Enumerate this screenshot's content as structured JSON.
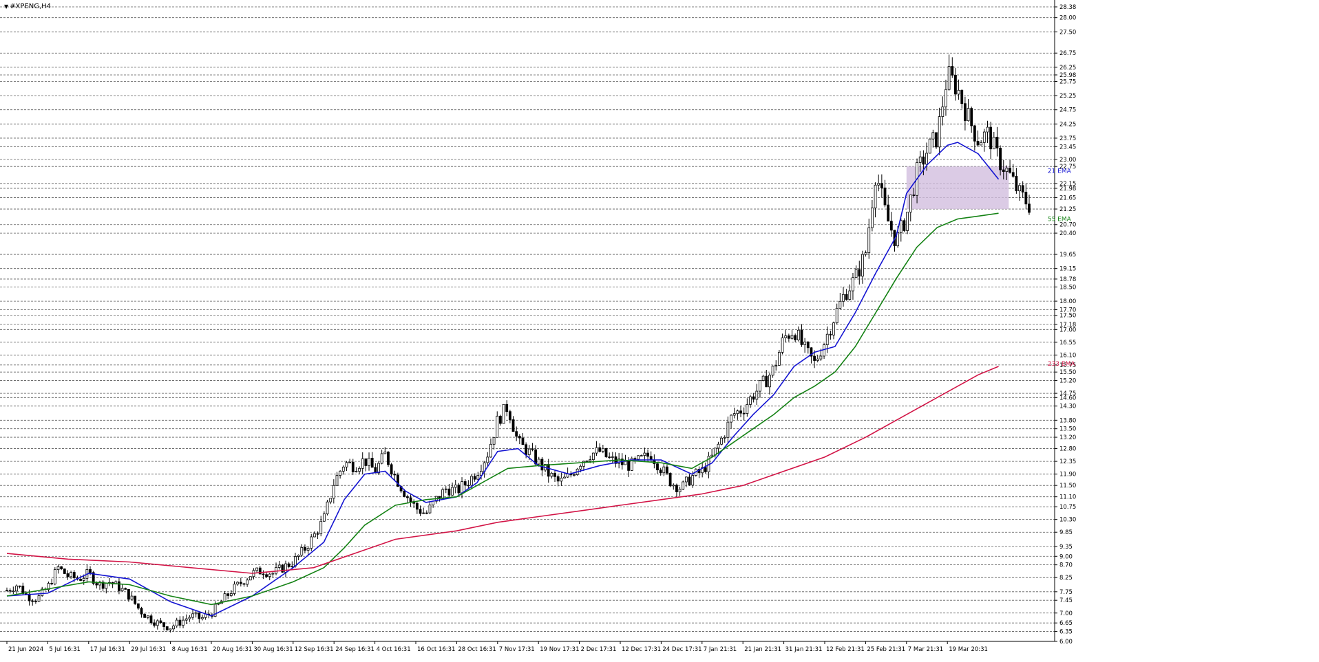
{
  "window": {
    "title": "#XPENG,H4"
  },
  "chart_data": {
    "type": "candlestick",
    "symbol": "#XPENG",
    "timeframe": "H4",
    "price_ticks": [
      "28.38",
      "28.00",
      "27.50",
      "26.75",
      "26.25",
      "25.98",
      "25.75",
      "25.25",
      "24.75",
      "24.25",
      "23.75",
      "23.45",
      "23.00",
      "22.75",
      "22.15",
      "21.98",
      "21.65",
      "21.25",
      "20.70",
      "20.40",
      "19.65",
      "19.15",
      "18.78",
      "18.50",
      "18.00",
      "17.70",
      "17.50",
      "17.18",
      "17.00",
      "16.55",
      "16.10",
      "15.75",
      "15.50",
      "15.20",
      "14.75",
      "14.60",
      "14.30",
      "13.80",
      "13.50",
      "13.20",
      "12.80",
      "12.35",
      "11.90",
      "11.50",
      "11.10",
      "10.75",
      "10.30",
      "9.85",
      "9.35",
      "9.00",
      "8.70",
      "8.25",
      "7.75",
      "7.45",
      "7.00",
      "6.65",
      "6.35",
      "6.00"
    ],
    "time_labels": [
      {
        "t": 0,
        "label": "21 Jun 2024"
      },
      {
        "t": 4,
        "label": "5 Jul 16:31"
      },
      {
        "t": 8,
        "label": "17 Jul 16:31"
      },
      {
        "t": 12,
        "label": "29 Jul 16:31"
      },
      {
        "t": 16,
        "label": "8 Aug 16:31"
      },
      {
        "t": 20,
        "label": "20 Aug 16:31"
      },
      {
        "t": 24,
        "label": "30 Aug 16:31"
      },
      {
        "t": 28,
        "label": "12 Sep 16:31"
      },
      {
        "t": 32,
        "label": "24 Sep 16:31"
      },
      {
        "t": 36,
        "label": "4 Oct 16:31"
      },
      {
        "t": 40,
        "label": "16 Oct 16:31"
      },
      {
        "t": 44,
        "label": "28 Oct 16:31"
      },
      {
        "t": 48,
        "label": "7 Nov 17:31"
      },
      {
        "t": 52,
        "label": "19 Nov 17:31"
      },
      {
        "t": 56,
        "label": "2 Dec 17:31"
      },
      {
        "t": 60,
        "label": "12 Dec 17:31"
      },
      {
        "t": 64,
        "label": "24 Dec 17:31"
      },
      {
        "t": 68,
        "label": "7 Jan 21:31"
      },
      {
        "t": 72,
        "label": "21 Jan 21:31"
      },
      {
        "t": 76,
        "label": "31 Jan 21:31"
      },
      {
        "t": 80,
        "label": "12 Feb 21:31"
      },
      {
        "t": 84,
        "label": "25 Feb 21:31"
      },
      {
        "t": 88,
        "label": "7 Mar 21:31"
      },
      {
        "t": 92,
        "label": "19 Mar 20:31"
      }
    ],
    "price_series": [
      [
        0,
        7.8
      ],
      [
        1,
        8.0
      ],
      [
        2,
        7.6
      ],
      [
        3,
        7.5
      ],
      [
        4,
        7.9
      ],
      [
        5,
        8.6
      ],
      [
        6,
        8.3
      ],
      [
        7,
        8.2
      ],
      [
        8,
        8.4
      ],
      [
        9,
        8.0
      ],
      [
        10,
        8.1
      ],
      [
        11,
        7.9
      ],
      [
        12,
        7.6
      ],
      [
        13,
        7.1
      ],
      [
        14,
        6.8
      ],
      [
        15,
        6.6
      ],
      [
        16,
        6.5
      ],
      [
        17,
        6.7
      ],
      [
        18,
        6.9
      ],
      [
        19,
        6.8
      ],
      [
        20,
        7.0
      ],
      [
        21,
        7.4
      ],
      [
        22,
        7.8
      ],
      [
        23,
        8.1
      ],
      [
        24,
        8.4
      ],
      [
        25,
        8.5
      ],
      [
        26,
        8.4
      ],
      [
        27,
        8.6
      ],
      [
        28,
        8.8
      ],
      [
        29,
        9.2
      ],
      [
        30,
        9.7
      ],
      [
        31,
        10.3
      ],
      [
        32,
        11.6
      ],
      [
        33,
        12.3
      ],
      [
        34,
        12.2
      ],
      [
        35,
        12.4
      ],
      [
        36,
        12.0
      ],
      [
        37,
        12.6
      ],
      [
        38,
        11.8
      ],
      [
        39,
        11.2
      ],
      [
        40,
        10.7
      ],
      [
        41,
        10.5
      ],
      [
        42,
        11.0
      ],
      [
        43,
        11.4
      ],
      [
        44,
        11.3
      ],
      [
        45,
        11.6
      ],
      [
        46,
        12.0
      ],
      [
        47,
        12.6
      ],
      [
        48,
        13.8
      ],
      [
        49,
        14.3
      ],
      [
        50,
        13.0
      ],
      [
        51,
        12.7
      ],
      [
        52,
        12.3
      ],
      [
        53,
        11.9
      ],
      [
        54,
        11.6
      ],
      [
        55,
        11.8
      ],
      [
        56,
        12.3
      ],
      [
        57,
        12.6
      ],
      [
        58,
        12.7
      ],
      [
        59,
        12.4
      ],
      [
        60,
        12.3
      ],
      [
        61,
        12.2
      ],
      [
        62,
        12.4
      ],
      [
        63,
        12.6
      ],
      [
        64,
        12.1
      ],
      [
        65,
        11.6
      ],
      [
        66,
        11.4
      ],
      [
        67,
        11.8
      ],
      [
        68,
        12.0
      ],
      [
        69,
        12.5
      ],
      [
        70,
        13.2
      ],
      [
        71,
        14.0
      ],
      [
        72,
        14.2
      ],
      [
        73,
        14.7
      ],
      [
        74,
        15.1
      ],
      [
        75,
        15.6
      ],
      [
        76,
        16.7
      ],
      [
        77,
        17.0
      ],
      [
        78,
        16.3
      ],
      [
        79,
        15.8
      ],
      [
        80,
        16.6
      ],
      [
        81,
        17.5
      ],
      [
        82,
        18.3
      ],
      [
        83,
        18.8
      ],
      [
        84,
        19.7
      ],
      [
        85,
        22.6
      ],
      [
        86,
        21.0
      ],
      [
        87,
        20.1
      ],
      [
        88,
        21.0
      ],
      [
        89,
        22.5
      ],
      [
        90,
        23.3
      ],
      [
        91,
        23.8
      ],
      [
        92,
        26.0
      ],
      [
        93,
        25.5
      ],
      [
        94,
        24.5
      ],
      [
        95,
        23.7
      ],
      [
        96,
        23.9
      ],
      [
        97,
        23.0
      ],
      [
        98,
        22.5
      ],
      [
        99,
        21.8
      ],
      [
        100,
        21.4
      ]
    ],
    "series": [
      {
        "name": "21 EMA",
        "color": "#1414d2",
        "points": [
          [
            0,
            7.6
          ],
          [
            4,
            7.7
          ],
          [
            8,
            8.4
          ],
          [
            12,
            8.2
          ],
          [
            16,
            7.4
          ],
          [
            20,
            6.9
          ],
          [
            24,
            7.6
          ],
          [
            28,
            8.6
          ],
          [
            31,
            9.5
          ],
          [
            33,
            11.0
          ],
          [
            35,
            11.9
          ],
          [
            37,
            12.0
          ],
          [
            39,
            11.3
          ],
          [
            41,
            10.9
          ],
          [
            44,
            11.1
          ],
          [
            46,
            11.6
          ],
          [
            48,
            12.7
          ],
          [
            50,
            12.8
          ],
          [
            52,
            12.2
          ],
          [
            55,
            11.9
          ],
          [
            58,
            12.2
          ],
          [
            61,
            12.4
          ],
          [
            64,
            12.4
          ],
          [
            67,
            11.9
          ],
          [
            69,
            12.3
          ],
          [
            71,
            13.2
          ],
          [
            73,
            14.0
          ],
          [
            75,
            14.7
          ],
          [
            77,
            15.7
          ],
          [
            79,
            16.2
          ],
          [
            81,
            16.4
          ],
          [
            83,
            17.6
          ],
          [
            85,
            19.0
          ],
          [
            87,
            20.3
          ],
          [
            88,
            21.8
          ],
          [
            90,
            22.8
          ],
          [
            92,
            23.5
          ],
          [
            93,
            23.6
          ],
          [
            95,
            23.2
          ],
          [
            97,
            22.3
          ]
        ]
      },
      {
        "name": "55 EMA",
        "color": "#148214",
        "points": [
          [
            0,
            7.6
          ],
          [
            8,
            8.1
          ],
          [
            12,
            8.0
          ],
          [
            16,
            7.6
          ],
          [
            20,
            7.3
          ],
          [
            24,
            7.6
          ],
          [
            28,
            8.1
          ],
          [
            31,
            8.6
          ],
          [
            33,
            9.3
          ],
          [
            35,
            10.1
          ],
          [
            38,
            10.8
          ],
          [
            41,
            11.0
          ],
          [
            44,
            11.1
          ],
          [
            47,
            11.7
          ],
          [
            49,
            12.1
          ],
          [
            52,
            12.2
          ],
          [
            56,
            12.3
          ],
          [
            60,
            12.4
          ],
          [
            64,
            12.3
          ],
          [
            67,
            12.1
          ],
          [
            69,
            12.5
          ],
          [
            71,
            13.0
          ],
          [
            73,
            13.5
          ],
          [
            75,
            14.0
          ],
          [
            77,
            14.6
          ],
          [
            79,
            15.0
          ],
          [
            81,
            15.5
          ],
          [
            83,
            16.4
          ],
          [
            85,
            17.6
          ],
          [
            87,
            18.8
          ],
          [
            89,
            19.9
          ],
          [
            91,
            20.6
          ],
          [
            93,
            20.9
          ],
          [
            95,
            21.0
          ],
          [
            97,
            21.1
          ]
        ]
      },
      {
        "name": "233 EMA",
        "color": "#d21446",
        "points": [
          [
            0,
            9.1
          ],
          [
            6,
            8.9
          ],
          [
            12,
            8.8
          ],
          [
            18,
            8.6
          ],
          [
            24,
            8.4
          ],
          [
            30,
            8.6
          ],
          [
            34,
            9.1
          ],
          [
            38,
            9.6
          ],
          [
            44,
            9.9
          ],
          [
            48,
            10.2
          ],
          [
            52,
            10.4
          ],
          [
            56,
            10.6
          ],
          [
            60,
            10.8
          ],
          [
            64,
            11.0
          ],
          [
            68,
            11.2
          ],
          [
            72,
            11.5
          ],
          [
            76,
            12.0
          ],
          [
            80,
            12.5
          ],
          [
            84,
            13.2
          ],
          [
            88,
            14.0
          ],
          [
            92,
            14.8
          ],
          [
            95,
            15.4
          ],
          [
            97,
            15.7
          ]
        ]
      }
    ],
    "series_labels": [
      {
        "text": "21 EMA",
        "color": "#1414d2",
        "t": 101,
        "price": 22.6
      },
      {
        "text": "55 EMA",
        "color": "#148214",
        "t": 101,
        "price": 20.9
      },
      {
        "text": "233 EMA",
        "color": "#d21446",
        "t": 101,
        "price": 15.8
      }
    ],
    "zone": {
      "t_start": 88,
      "t_end": 98,
      "price_top": 22.75,
      "price_bottom": 21.25,
      "color": "#d2bede"
    },
    "yrange": [
      6.0,
      28.38
    ],
    "xrange": [
      0,
      100
    ],
    "grid": true
  }
}
